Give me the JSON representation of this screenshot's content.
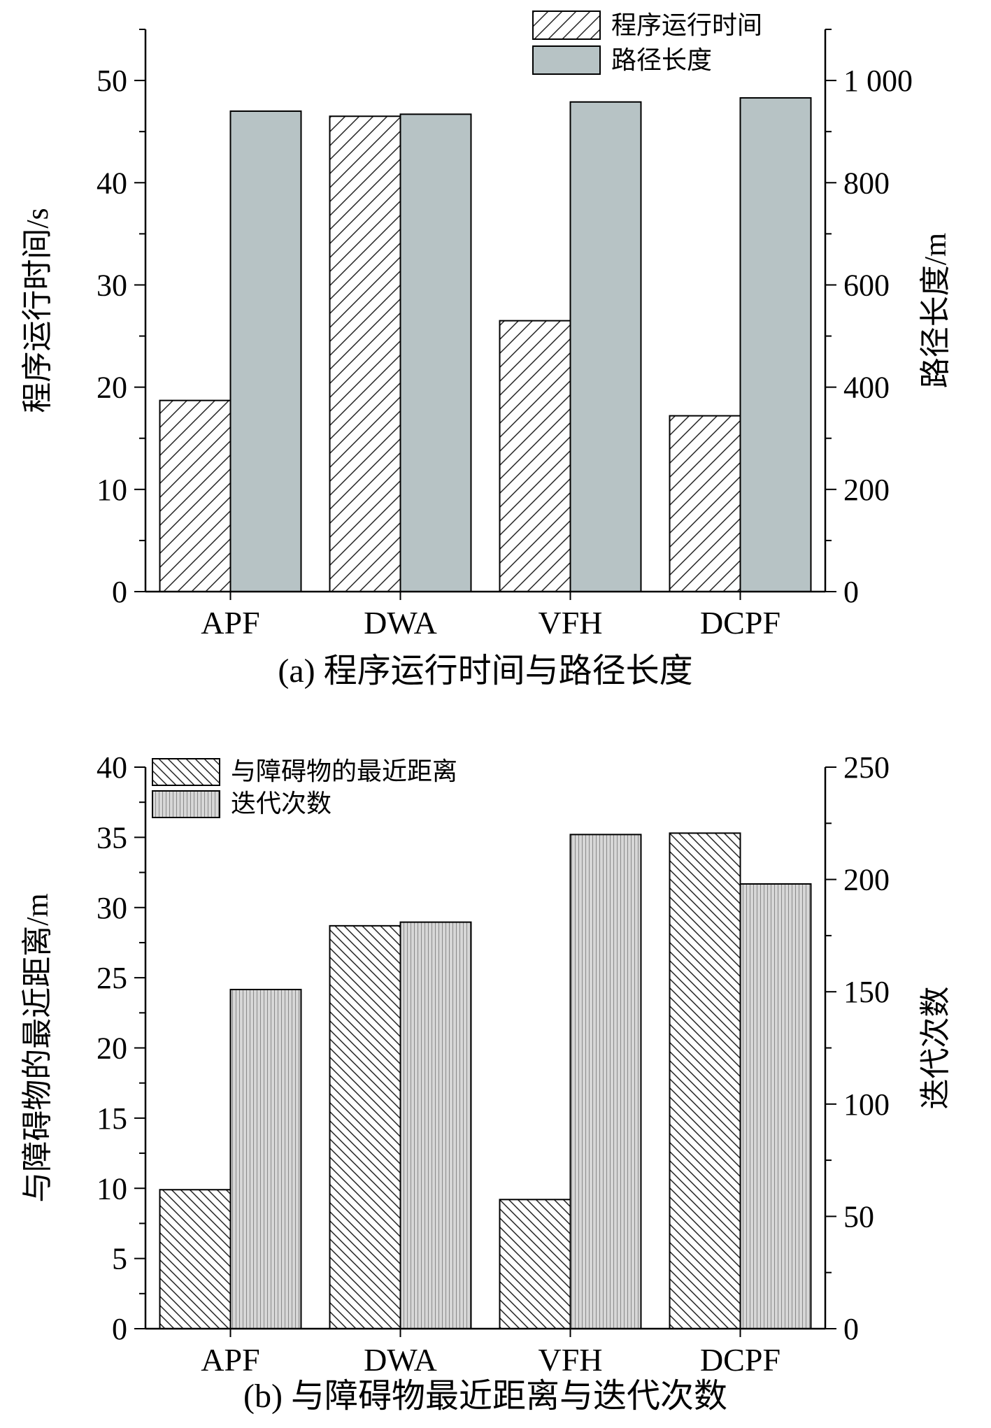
{
  "chart_data": [
    {
      "type": "bar",
      "caption": "(a) 程序运行时间与路径长度",
      "categories": [
        "APF",
        "DWA",
        "VFH",
        "DCPF"
      ],
      "series": [
        {
          "name": "程序运行时间",
          "axis": "left",
          "pattern": "hatch-fwd",
          "values": [
            18.7,
            46.5,
            26.5,
            17.2
          ]
        },
        {
          "name": "路径长度",
          "axis": "right",
          "pattern": "solid-gray",
          "values": [
            940,
            934,
            958,
            966
          ]
        }
      ],
      "ylabel_left": "程序运行时间/s",
      "ylabel_right": "路径长度/m",
      "ylim_left": [
        0,
        55
      ],
      "ylim_right": [
        0,
        1100
      ],
      "yticks_left": [
        0,
        10,
        20,
        30,
        40,
        50
      ],
      "yticks_left_labels": [
        "0",
        "10",
        "20",
        "30",
        "40",
        "50"
      ],
      "yticks_right": [
        0,
        200,
        400,
        600,
        800,
        1000
      ],
      "yticks_right_labels": [
        "0",
        "200",
        "400",
        "600",
        "800",
        "1 000"
      ],
      "legend_position": "top-right"
    },
    {
      "type": "bar",
      "caption": "(b) 与障碍物最近距离与迭代次数",
      "categories": [
        "APF",
        "DWA",
        "VFH",
        "DCPF"
      ],
      "series": [
        {
          "name": "与障碍物的最近距离",
          "axis": "left",
          "pattern": "hatch-back",
          "values": [
            9.9,
            28.7,
            9.2,
            35.3
          ]
        },
        {
          "name": "迭代次数",
          "axis": "right",
          "pattern": "vertical-lines",
          "values": [
            151,
            181,
            220,
            198
          ]
        }
      ],
      "ylabel_left": "与障碍物的最近距离/m",
      "ylabel_right": "迭代次数",
      "ylim_left": [
        0,
        40
      ],
      "ylim_right": [
        0,
        250
      ],
      "yticks_left": [
        0,
        5,
        10,
        15,
        20,
        25,
        30,
        35,
        40
      ],
      "yticks_left_labels": [
        "0",
        "5",
        "10",
        "15",
        "20",
        "25",
        "30",
        "35",
        "40"
      ],
      "yticks_right": [
        0,
        50,
        100,
        150,
        200,
        250
      ],
      "yticks_right_labels": [
        "0",
        "50",
        "100",
        "150",
        "200",
        "250"
      ],
      "legend_position": "top-left"
    }
  ]
}
